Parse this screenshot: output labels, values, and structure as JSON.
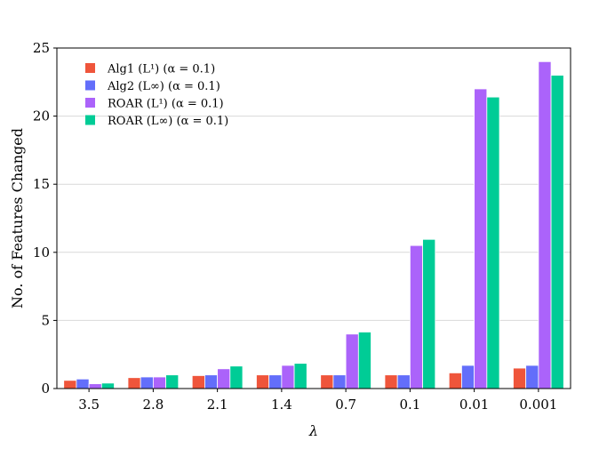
{
  "chart_data": {
    "type": "bar",
    "title": "",
    "xlabel": "λ",
    "ylabel": "No. of Features Changed",
    "categories": [
      "3.5",
      "2.8",
      "2.1",
      "1.4",
      "0.7",
      "0.1",
      "0.01",
      "0.001"
    ],
    "ylim": [
      0,
      25
    ],
    "yticks": [
      "0",
      "5",
      "10",
      "15",
      "20",
      "25"
    ],
    "grid": true,
    "legend_position": "top-left",
    "series": [
      {
        "name": "Alg1 (L¹) (α = 0.1)",
        "color": "#ef553b",
        "values": [
          0.6,
          0.8,
          0.95,
          1.0,
          1.0,
          1.0,
          1.15,
          1.5
        ]
      },
      {
        "name": "Alg2 (L∞) (α = 0.1)",
        "color": "#636efa",
        "values": [
          0.7,
          0.85,
          1.0,
          1.0,
          1.0,
          1.0,
          1.7,
          1.7
        ]
      },
      {
        "name": "ROAR (L¹) (α = 0.1)",
        "color": "#ab63fa",
        "values": [
          0.35,
          0.85,
          1.45,
          1.7,
          4.0,
          10.5,
          22.0,
          24.0
        ]
      },
      {
        "name": "ROAR (L∞) (α = 0.1)",
        "color": "#00cc96",
        "values": [
          0.4,
          1.0,
          1.65,
          1.85,
          4.15,
          10.95,
          21.4,
          23.0
        ]
      }
    ]
  }
}
